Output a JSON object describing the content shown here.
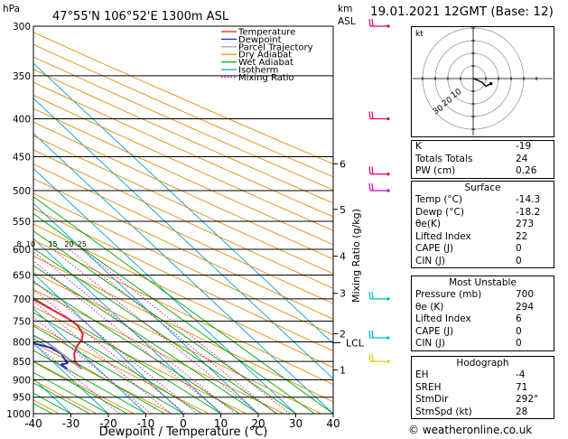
{
  "header": {
    "location": "47°55'N 106°52'E 1300m ASL",
    "datetime": "19.01.2021 12GMT (Base: 12)",
    "hpa_label": "hPa",
    "km_label": "km",
    "asl_label": "ASL",
    "mixing_axis_label": "Mixing Ratio (g/kg)",
    "lcl_label": "LCL"
  },
  "chart_data": {
    "type": "line",
    "xlabel": "Dewpoint / Temperature (°C)",
    "x_ticks": [
      -40,
      -30,
      -20,
      -10,
      0,
      10,
      20,
      30,
      40
    ],
    "x_range": [
      -40,
      40
    ],
    "pressure_levels": [
      300,
      350,
      400,
      450,
      500,
      550,
      600,
      650,
      700,
      750,
      800,
      850,
      900,
      950,
      1000
    ],
    "pressure_range": [
      300,
      1000
    ],
    "km_ticks": [
      {
        "label": "6",
        "p": 460
      },
      {
        "label": "5",
        "p": 530
      },
      {
        "label": "4",
        "p": 613
      },
      {
        "label": "3",
        "p": 688
      },
      {
        "label": "2",
        "p": 780
      },
      {
        "label": "1",
        "p": 873
      }
    ],
    "lcl_pressure": 802,
    "mixing_ratio_labels": [
      "1",
      "2",
      "3",
      "4",
      "5",
      "8",
      "10",
      "15",
      "20",
      "25"
    ],
    "legend": [
      "Temperature",
      "Dewpoint",
      "Parcel Trajectory",
      "Dry Adiabat",
      "Wet Adiabat",
      "Isotherm",
      "Mixing Ratio"
    ],
    "colors": {
      "temperature": "#dd2222",
      "dewpoint": "#1a2bd6",
      "parcel": "#999999",
      "dry_adiabat": "#e08a00",
      "wet_adiabat": "#00aa00",
      "isotherm": "#00a0dd",
      "mixing_ratio": "#dd00aa",
      "wind": "#dd0066"
    },
    "series": [
      {
        "name": "Temperature",
        "points": [
          [
            -14.3,
            870
          ],
          [
            -14.0,
            850
          ],
          [
            -12.0,
            830
          ],
          [
            -9.0,
            810
          ],
          [
            -6.0,
            795
          ],
          [
            -4.0,
            780
          ],
          [
            -3.0,
            760
          ],
          [
            -3.5,
            745
          ],
          [
            -7.0,
            705
          ],
          [
            -11.0,
            670
          ],
          [
            -15.0,
            630
          ],
          [
            -19.5,
            585
          ],
          [
            -24.0,
            545
          ],
          [
            -28.5,
            505
          ],
          [
            -32.5,
            470
          ],
          [
            -37.0,
            440
          ],
          [
            -42.5,
            400
          ],
          [
            -48.5,
            360
          ],
          [
            -55.5,
            320
          ],
          [
            -58.5,
            300
          ]
        ]
      },
      {
        "name": "Dewpoint",
        "points": [
          [
            -18.2,
            870
          ],
          [
            -18.5,
            858
          ],
          [
            -16.5,
            855
          ],
          [
            -15.5,
            830
          ],
          [
            -16.5,
            815
          ],
          [
            -29.0,
            770
          ],
          [
            -25.0,
            745
          ],
          [
            -15.5,
            705
          ],
          [
            -16.5,
            670
          ],
          [
            -19.5,
            630
          ],
          [
            -24.0,
            585
          ],
          [
            -27.5,
            545
          ],
          [
            -31.5,
            520
          ],
          [
            -37.0,
            500
          ],
          [
            -42.0,
            480
          ],
          [
            -46.5,
            450
          ],
          [
            -51.5,
            400
          ],
          [
            -58.5,
            340
          ],
          [
            -63.5,
            300
          ]
        ]
      },
      {
        "name": "Parcel Trajectory",
        "points": [
          [
            -14.3,
            870
          ],
          [
            -16.0,
            802
          ],
          [
            -21.0,
            750
          ],
          [
            -27.0,
            700
          ],
          [
            -33.0,
            650
          ],
          [
            -39.5,
            600
          ],
          [
            -46.5,
            550
          ],
          [
            -54.0,
            500
          ],
          [
            -62.0,
            450
          ],
          [
            -70.0,
            400
          ],
          [
            -78.5,
            350
          ],
          [
            -86.0,
            310
          ]
        ]
      }
    ],
    "wind_barbs": [
      {
        "p": 300,
        "color": "#dd0066"
      },
      {
        "p": 400,
        "color": "#dd0066"
      },
      {
        "p": 475,
        "color": "#dd0066"
      },
      {
        "p": 500,
        "color": "#cc00cc"
      },
      {
        "p": 700,
        "color": "#00bbbb"
      },
      {
        "p": 790,
        "color": "#00bbbb"
      },
      {
        "p": 850,
        "color": "#ddcc00"
      }
    ]
  },
  "hodograph": {
    "unit_label": "kt",
    "points": [
      [
        0,
        0
      ],
      [
        3,
        -1
      ],
      [
        7,
        -3
      ],
      [
        10,
        -6
      ],
      [
        14,
        -4
      ]
    ],
    "ring_labels": [
      "10",
      "20",
      "30"
    ]
  },
  "indices": [
    {
      "label": "K",
      "value": "-19"
    },
    {
      "label": "Totals Totals",
      "value": "24"
    },
    {
      "label": "PW (cm)",
      "value": "0.26"
    }
  ],
  "surface": {
    "title": "Surface",
    "rows": [
      {
        "label": "Temp (°C)",
        "value": "-14.3"
      },
      {
        "label": "Dewp (°C)",
        "value": "-18.2"
      },
      {
        "label": "θe(K)",
        "value": "273"
      },
      {
        "label": "Lifted Index",
        "value": "22"
      },
      {
        "label": "CAPE (J)",
        "value": "0"
      },
      {
        "label": "CIN (J)",
        "value": "0"
      }
    ]
  },
  "most_unstable": {
    "title": "Most Unstable",
    "rows": [
      {
        "label": "Pressure (mb)",
        "value": "700"
      },
      {
        "label": "θe (K)",
        "value": "294"
      },
      {
        "label": "Lifted Index",
        "value": "6"
      },
      {
        "label": "CAPE (J)",
        "value": "0"
      },
      {
        "label": "CIN (J)",
        "value": "0"
      }
    ]
  },
  "hodograph_table": {
    "title": "Hodograph",
    "rows": [
      {
        "label": "EH",
        "value": "-4"
      },
      {
        "label": "SREH",
        "value": "71"
      },
      {
        "label": "StmDir",
        "value": "292°"
      },
      {
        "label": "StmSpd (kt)",
        "value": "28"
      }
    ]
  },
  "credit": "© weatheronline.co.uk"
}
